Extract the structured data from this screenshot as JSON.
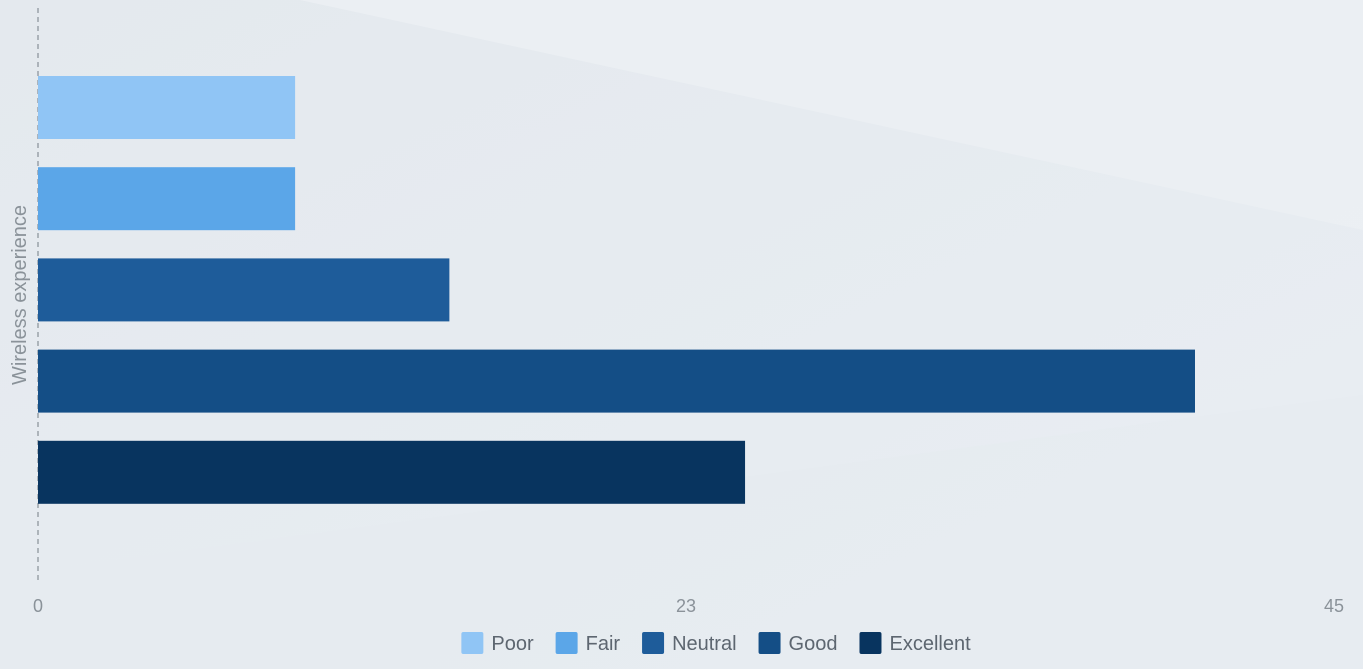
{
  "chart_data": {
    "type": "bar",
    "orientation": "horizontal",
    "categories": [
      "Poor",
      "Fair",
      "Neutral",
      "Good",
      "Excellent"
    ],
    "values": [
      10,
      10,
      16,
      45,
      27.5
    ],
    "ylabel": "Wireless experience",
    "xlim": [
      0,
      45
    ],
    "x_ticks": [
      "0",
      "23",
      "45"
    ],
    "grid": false,
    "legend_position": "bottom-center",
    "colors": [
      "#90c5f5",
      "#5ba6e8",
      "#1e5c9a",
      "#144e86",
      "#08345f"
    ]
  }
}
